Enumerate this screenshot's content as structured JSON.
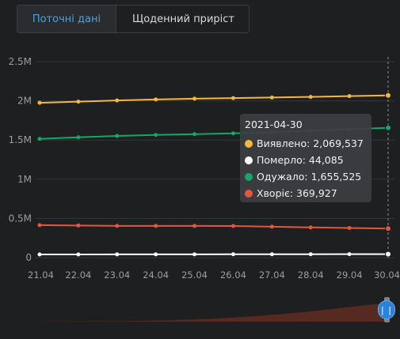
{
  "tabs": {
    "current": "Поточні дані",
    "daily": "Щоденний приріст"
  },
  "colors": {
    "detected": "#f5b83d",
    "died": "#ffffff",
    "recovered": "#12a86a",
    "sick": "#e5573a",
    "grid": "#34363a",
    "axis_text": "#9a9da2",
    "navigator_fill": "#5a2a22"
  },
  "tooltip": {
    "date": "2021-04-30",
    "rows": [
      {
        "label": "Виявлено: 2,069,537",
        "color": "#f5b83d"
      },
      {
        "label": "Померло: 44,085",
        "color": "#ffffff"
      },
      {
        "label": "Одужало: 1,655,525",
        "color": "#12a86a"
      },
      {
        "label": "Хворіє: 369,927",
        "color": "#e5573a"
      }
    ]
  },
  "navigator": {
    "handle_label": "| |"
  },
  "chart_data": {
    "type": "line",
    "categories": [
      "21.04",
      "22.04",
      "23.04",
      "24.04",
      "25.04",
      "26.04",
      "27.04",
      "28.04",
      "29.04",
      "30.04"
    ],
    "y_ticks": [
      "0",
      "0.5M",
      "1M",
      "1.5M",
      "2M",
      "2.5M"
    ],
    "ylim": [
      0,
      2500000
    ],
    "grid": true,
    "series": [
      {
        "key": "detected",
        "values": [
          1975000,
          1990000,
          2005000,
          2018000,
          2028000,
          2035000,
          2043000,
          2050000,
          2060000,
          2069537
        ]
      },
      {
        "key": "recovered",
        "values": [
          1515000,
          1535000,
          1552000,
          1565000,
          1575000,
          1585000,
          1600000,
          1620000,
          1638000,
          1655525
        ]
      },
      {
        "key": "sick",
        "values": [
          415000,
          410000,
          405000,
          405000,
          405000,
          403000,
          395000,
          385000,
          378000,
          369927
        ]
      },
      {
        "key": "died",
        "values": [
          40000,
          40500,
          41000,
          41500,
          42000,
          42500,
          43000,
          43400,
          43800,
          44085
        ]
      }
    ]
  }
}
